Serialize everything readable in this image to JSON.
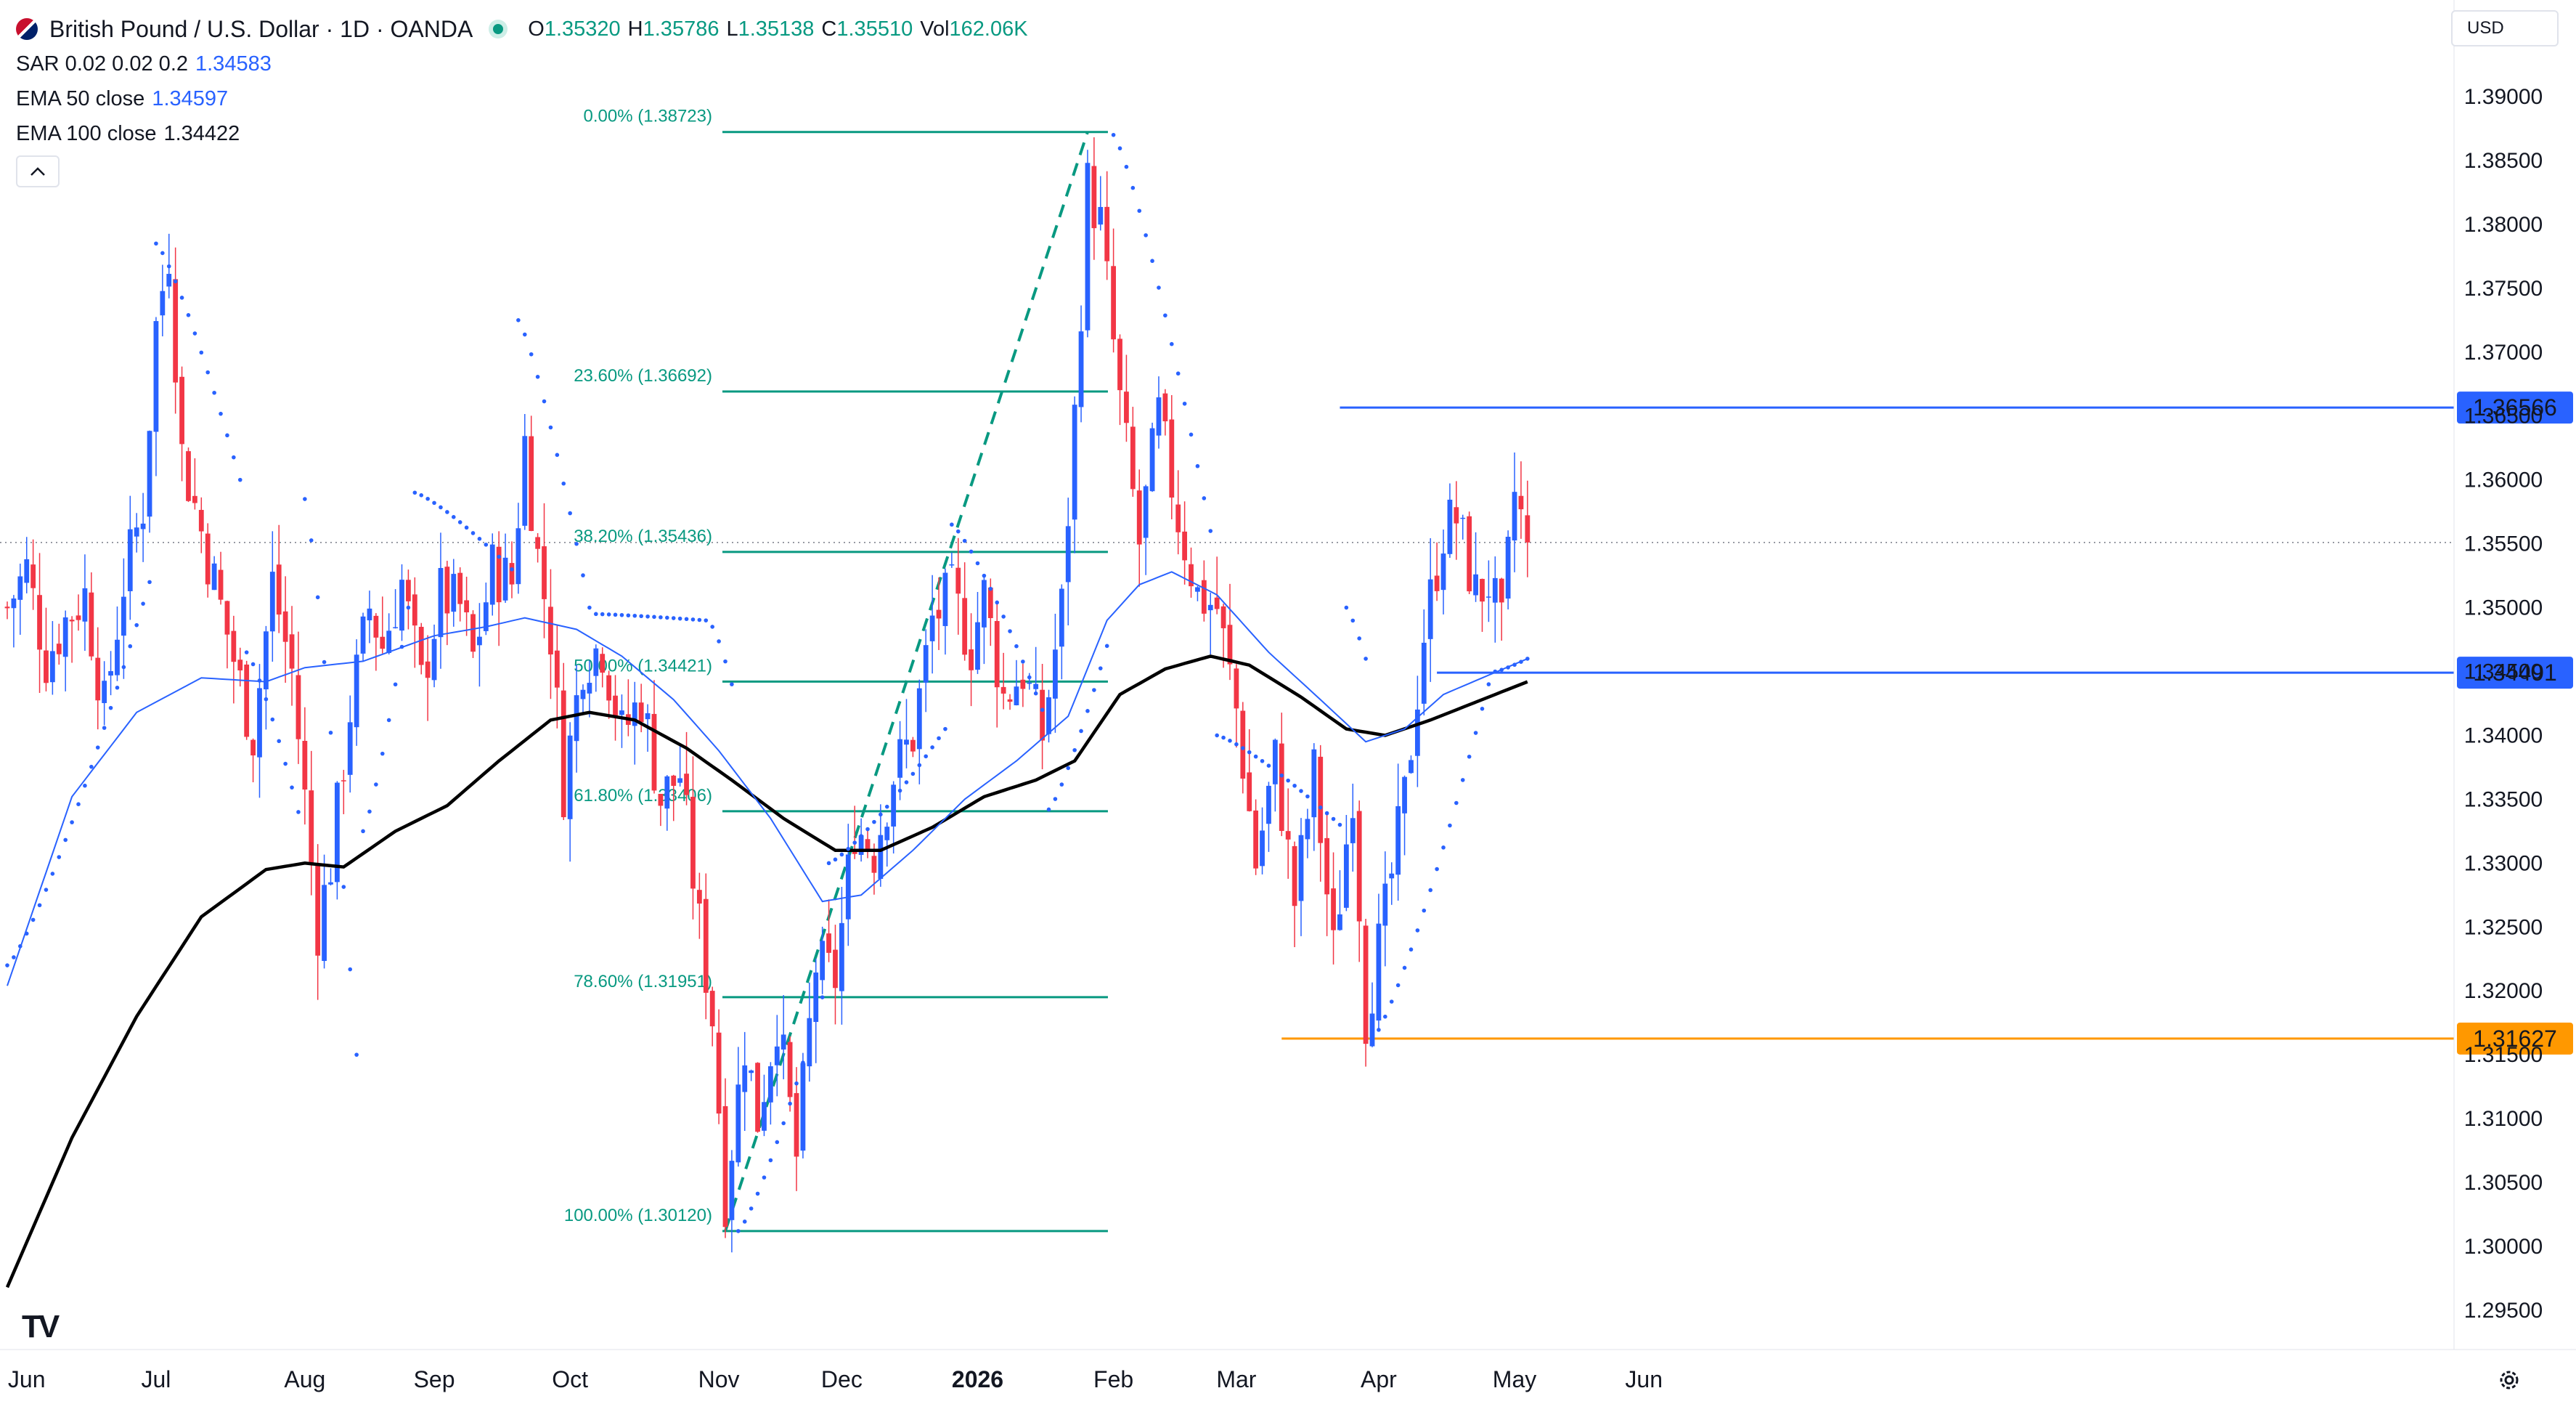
{
  "header": {
    "symbol_title": "British Pound / U.S. Dollar · 1D · OANDA",
    "ohlc": [
      {
        "key": "O",
        "value": "1.35320"
      },
      {
        "key": "H",
        "value": "1.35786"
      },
      {
        "key": "L",
        "value": "1.35138"
      },
      {
        "key": "C",
        "value": "1.35510"
      },
      {
        "key": "Vol",
        "value": "162.06K"
      }
    ],
    "indicators": [
      {
        "label": "SAR 0.02 0.02 0.2",
        "value": "1.34583"
      },
      {
        "label": "EMA 50 close",
        "value": "1.34597"
      },
      {
        "label": "EMA 100 close",
        "value": "1.34422"
      }
    ],
    "collapse_icon": "chevron-up-icon",
    "currency": "USD",
    "logo_text": "TV",
    "settings_icon": "gear-icon"
  },
  "colors": {
    "up": "#2962ff",
    "down": "#f23645",
    "ema50": "#2962ff",
    "ema100": "#000000",
    "sar": "#2962ff",
    "fib": "#089981",
    "resistance": "#2962ff",
    "support": "#ff9800"
  },
  "chart_data": {
    "type": "candlestick",
    "ylim": [
      1.2915,
      1.3935
    ],
    "yticks": [
      "1.29500",
      "1.30000",
      "1.30500",
      "1.31000",
      "1.31500",
      "1.32000",
      "1.32500",
      "1.33000",
      "1.33500",
      "1.34000",
      "1.34500",
      "1.35000",
      "1.35500",
      "1.36000",
      "1.36500",
      "1.37000",
      "1.37500",
      "1.38000",
      "1.38500",
      "1.39000"
    ],
    "xticks": [
      {
        "label": "Jun",
        "bar": 3
      },
      {
        "label": "Jul",
        "bar": 23
      },
      {
        "label": "Aug",
        "bar": 46
      },
      {
        "label": "Sep",
        "bar": 66
      },
      {
        "label": "Oct",
        "bar": 87
      },
      {
        "label": "Nov",
        "bar": 110
      },
      {
        "label": "Dec",
        "bar": 129
      },
      {
        "label": "2026",
        "bar": 150,
        "bold": true
      },
      {
        "label": "Feb",
        "bar": 171
      },
      {
        "label": "Mar",
        "bar": 190
      },
      {
        "label": "Apr",
        "bar": 212
      },
      {
        "label": "May",
        "bar": 233
      },
      {
        "label": "Jun",
        "bar": 253
      }
    ],
    "bar_count": 270,
    "current_price": 1.3551,
    "fibonacci": {
      "start_bar": 111,
      "end_bar": 167,
      "levels": [
        {
          "label": "0.00% (1.38723)",
          "price": 1.38723
        },
        {
          "label": "23.60% (1.36692)",
          "price": 1.36692
        },
        {
          "label": "38.20% (1.35436)",
          "price": 1.35436
        },
        {
          "label": "50.00% (1.34421)",
          "price": 1.34421
        },
        {
          "label": "61.80% (1.33406)",
          "price": 1.33406
        },
        {
          "label": "78.60% (1.31951)",
          "price": 1.31951
        },
        {
          "label": "100.00% (1.30120)",
          "price": 1.3012
        }
      ],
      "trend_from": {
        "bar": 111,
        "price": 1.3012
      },
      "trend_to": {
        "bar": 167,
        "price": 1.38723
      }
    },
    "horizontal_levels": [
      {
        "label": "1.36566",
        "price": 1.36566,
        "from_bar": 206,
        "color": "#2962ff"
      },
      {
        "label": "1.34491",
        "price": 1.34491,
        "from_bar": 221,
        "color": "#2962ff"
      },
      {
        "label": "1.31627",
        "price": 1.31627,
        "from_bar": 197,
        "color": "#ff9800"
      }
    ],
    "close_anchors": [
      [
        0,
        1.35
      ],
      [
        3,
        1.353
      ],
      [
        6,
        1.346
      ],
      [
        9,
        1.349
      ],
      [
        12,
        1.351
      ],
      [
        15,
        1.342
      ],
      [
        18,
        1.352
      ],
      [
        21,
        1.358
      ],
      [
        23,
        1.372
      ],
      [
        25,
        1.378
      ],
      [
        27,
        1.362
      ],
      [
        30,
        1.356
      ],
      [
        33,
        1.35
      ],
      [
        36,
        1.344
      ],
      [
        38,
        1.34
      ],
      [
        41,
        1.352
      ],
      [
        44,
        1.345
      ],
      [
        46,
        1.335
      ],
      [
        48,
        1.325
      ],
      [
        50,
        1.33
      ],
      [
        53,
        1.342
      ],
      [
        56,
        1.35
      ],
      [
        58,
        1.347
      ],
      [
        61,
        1.352
      ],
      [
        64,
        1.344
      ],
      [
        67,
        1.351
      ],
      [
        70,
        1.35
      ],
      [
        72,
        1.346
      ],
      [
        75,
        1.353
      ],
      [
        78,
        1.352
      ],
      [
        80,
        1.363
      ],
      [
        82,
        1.354
      ],
      [
        84,
        1.348
      ],
      [
        86,
        1.336
      ],
      [
        89,
        1.346
      ],
      [
        92,
        1.347
      ],
      [
        95,
        1.34
      ],
      [
        98,
        1.343
      ],
      [
        101,
        1.335
      ],
      [
        104,
        1.337
      ],
      [
        107,
        1.325
      ],
      [
        109,
        1.318
      ],
      [
        111,
        1.304
      ],
      [
        114,
        1.316
      ],
      [
        116,
        1.31
      ],
      [
        119,
        1.318
      ],
      [
        122,
        1.307
      ],
      [
        125,
        1.322
      ],
      [
        128,
        1.321
      ],
      [
        131,
        1.333
      ],
      [
        134,
        1.331
      ],
      [
        137,
        1.337
      ],
      [
        140,
        1.34
      ],
      [
        143,
        1.349
      ],
      [
        146,
        1.351
      ],
      [
        149,
        1.347
      ],
      [
        151,
        1.351
      ],
      [
        154,
        1.343
      ],
      [
        157,
        1.345
      ],
      [
        160,
        1.34
      ],
      [
        163,
        1.35
      ],
      [
        165,
        1.365
      ],
      [
        167,
        1.383
      ],
      [
        169,
        1.38
      ],
      [
        172,
        1.366
      ],
      [
        175,
        1.355
      ],
      [
        178,
        1.365
      ],
      [
        181,
        1.357
      ],
      [
        184,
        1.351
      ],
      [
        187,
        1.35
      ],
      [
        190,
        1.342
      ],
      [
        193,
        1.33
      ],
      [
        196,
        1.338
      ],
      [
        199,
        1.327
      ],
      [
        202,
        1.337
      ],
      [
        205,
        1.323
      ],
      [
        208,
        1.336
      ],
      [
        210,
        1.318
      ],
      [
        213,
        1.326
      ],
      [
        216,
        1.335
      ],
      [
        219,
        1.348
      ],
      [
        222,
        1.356
      ],
      [
        224,
        1.357
      ],
      [
        227,
        1.351
      ],
      [
        229,
        1.352
      ],
      [
        231,
        1.348
      ],
      [
        233,
        1.359
      ],
      [
        235,
        1.3551
      ]
    ],
    "ema50_anchors": [
      [
        0,
        1.3204
      ],
      [
        10,
        1.3352
      ],
      [
        20,
        1.3418
      ],
      [
        30,
        1.3445
      ],
      [
        40,
        1.3442
      ],
      [
        46,
        1.3453
      ],
      [
        55,
        1.3458
      ],
      [
        66,
        1.3478
      ],
      [
        74,
        1.3485
      ],
      [
        80,
        1.3492
      ],
      [
        88,
        1.3483
      ],
      [
        95,
        1.3462
      ],
      [
        103,
        1.3428
      ],
      [
        110,
        1.3388
      ],
      [
        118,
        1.3335
      ],
      [
        126,
        1.327
      ],
      [
        132,
        1.3275
      ],
      [
        140,
        1.331
      ],
      [
        148,
        1.335
      ],
      [
        156,
        1.338
      ],
      [
        164,
        1.3415
      ],
      [
        170,
        1.349
      ],
      [
        175,
        1.3518
      ],
      [
        180,
        1.3528
      ],
      [
        187,
        1.351
      ],
      [
        195,
        1.3465
      ],
      [
        203,
        1.3428
      ],
      [
        210,
        1.3395
      ],
      [
        216,
        1.3405
      ],
      [
        222,
        1.3432
      ],
      [
        228,
        1.3445
      ],
      [
        235,
        1.346
      ]
    ],
    "ema100_anchors": [
      [
        0,
        1.2968
      ],
      [
        10,
        1.3085
      ],
      [
        20,
        1.318
      ],
      [
        30,
        1.3258
      ],
      [
        40,
        1.3295
      ],
      [
        46,
        1.33
      ],
      [
        52,
        1.3297
      ],
      [
        60,
        1.3325
      ],
      [
        68,
        1.3345
      ],
      [
        76,
        1.338
      ],
      [
        84,
        1.3412
      ],
      [
        90,
        1.3418
      ],
      [
        97,
        1.3412
      ],
      [
        105,
        1.339
      ],
      [
        112,
        1.3365
      ],
      [
        120,
        1.3335
      ],
      [
        128,
        1.331
      ],
      [
        135,
        1.331
      ],
      [
        143,
        1.3328
      ],
      [
        151,
        1.3352
      ],
      [
        159,
        1.3365
      ],
      [
        165,
        1.338
      ],
      [
        172,
        1.3432
      ],
      [
        179,
        1.3452
      ],
      [
        186,
        1.3462
      ],
      [
        192,
        1.3455
      ],
      [
        200,
        1.343
      ],
      [
        207,
        1.3405
      ],
      [
        213,
        1.34
      ],
      [
        220,
        1.3412
      ],
      [
        228,
        1.3428
      ],
      [
        235,
        1.3442
      ]
    ],
    "sar_segments": [
      {
        "start": 0,
        "end": 22,
        "from": 1.322,
        "to": 1.352,
        "side": "below"
      },
      {
        "start": 23,
        "end": 36,
        "from": 1.3785,
        "to": 1.36,
        "side": "above"
      },
      {
        "start": 37,
        "end": 45,
        "from": 1.3465,
        "to": 1.334,
        "side": "below"
      },
      {
        "start": 46,
        "end": 54,
        "from": 1.3585,
        "to": 1.315,
        "side": "above"
      },
      {
        "start": 55,
        "end": 62,
        "from": 1.3325,
        "to": 1.35,
        "side": "below"
      },
      {
        "start": 63,
        "end": 78,
        "from": 1.359,
        "to": 1.353,
        "side": "above"
      },
      {
        "start": 79,
        "end": 90,
        "from": 1.3725,
        "to": 1.35,
        "side": "above"
      },
      {
        "start": 91,
        "end": 108,
        "from": 1.3495,
        "to": 1.349,
        "side": "above"
      },
      {
        "start": 109,
        "end": 112,
        "from": 1.3485,
        "to": 1.344,
        "side": "above"
      },
      {
        "start": 113,
        "end": 126,
        "from": 1.3012,
        "to": 1.3195,
        "side": "below"
      },
      {
        "start": 127,
        "end": 145,
        "from": 1.33,
        "to": 1.3405,
        "side": "below"
      },
      {
        "start": 146,
        "end": 160,
        "from": 1.3565,
        "to": 1.342,
        "side": "above"
      },
      {
        "start": 161,
        "end": 170,
        "from": 1.3342,
        "to": 1.347,
        "side": "below"
      },
      {
        "start": 171,
        "end": 186,
        "from": 1.387,
        "to": 1.356,
        "side": "above"
      },
      {
        "start": 187,
        "end": 206,
        "from": 1.34,
        "to": 1.333,
        "side": "above"
      },
      {
        "start": 207,
        "end": 210,
        "from": 1.35,
        "to": 1.346,
        "side": "above"
      },
      {
        "start": 211,
        "end": 229,
        "from": 1.3162,
        "to": 1.344,
        "side": "below"
      },
      {
        "start": 230,
        "end": 235,
        "from": 1.345,
        "to": 1.346,
        "side": "below"
      }
    ]
  }
}
